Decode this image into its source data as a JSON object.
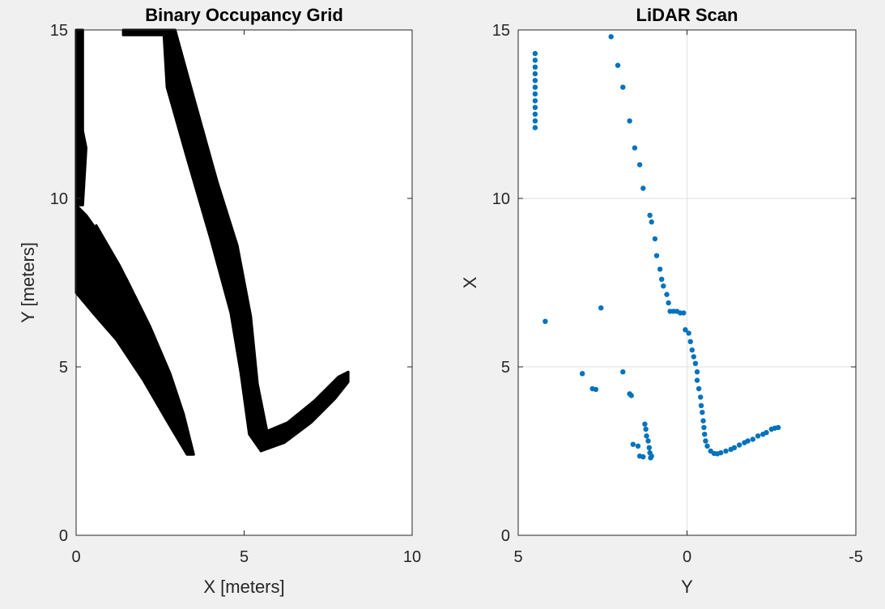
{
  "chart_data": [
    {
      "type": "heatmap",
      "title": "Binary Occupancy Grid",
      "xlabel": "X [meters]",
      "ylabel": "Y [meters]",
      "xlim": [
        0,
        10
      ],
      "ylim": [
        0,
        15
      ],
      "xticks": [
        "0",
        "5",
        "10"
      ],
      "yticks": [
        "0",
        "5",
        "10",
        "15"
      ],
      "grid": false,
      "colors": {
        "occupied": "#000000",
        "free": "#ffffff"
      },
      "occupied_regions": [
        {
          "name": "left-edge-wall",
          "polygon": [
            [
              0,
              15
            ],
            [
              0.2,
              15
            ],
            [
              0.2,
              12
            ],
            [
              0.3,
              11.5
            ],
            [
              0.2,
              9.8
            ],
            [
              0,
              9.8
            ]
          ]
        },
        {
          "name": "lower-left-wall-outer",
          "polygon": [
            [
              0,
              9.8
            ],
            [
              0.3,
              9.5
            ],
            [
              0.8,
              8.8
            ],
            [
              1.5,
              7.6
            ],
            [
              2.2,
              6.2
            ],
            [
              2.8,
              4.8
            ],
            [
              3.2,
              3.6
            ],
            [
              3.5,
              2.4
            ],
            [
              3.3,
              2.4
            ],
            [
              2.7,
              3.4
            ],
            [
              2.0,
              4.6
            ],
            [
              1.2,
              5.8
            ],
            [
              0.5,
              6.6
            ],
            [
              0,
              7.2
            ]
          ]
        },
        {
          "name": "lower-left-wall-inner",
          "polygon": [
            [
              0.6,
              9.2
            ],
            [
              1.3,
              8.0
            ],
            [
              2.0,
              6.6
            ],
            [
              2.6,
              5.2
            ],
            [
              2.3,
              5.0
            ],
            [
              1.6,
              6.3
            ],
            [
              0.9,
              7.6
            ],
            [
              0.3,
              8.6
            ]
          ]
        },
        {
          "name": "long-diagonal-wall",
          "polygon": [
            [
              2.6,
              15
            ],
            [
              2.95,
              15
            ],
            [
              3.5,
              13
            ],
            [
              4.2,
              10.5
            ],
            [
              4.8,
              8.6
            ],
            [
              5.2,
              6.5
            ],
            [
              5.4,
              4.5
            ],
            [
              5.7,
              3.0
            ],
            [
              5.5,
              2.5
            ],
            [
              5.15,
              3.0
            ],
            [
              4.9,
              4.8
            ],
            [
              4.6,
              6.6
            ],
            [
              4.0,
              8.8
            ],
            [
              3.3,
              11.2
            ],
            [
              2.7,
              13.3
            ]
          ]
        },
        {
          "name": "top-segment",
          "polygon": [
            [
              1.4,
              15
            ],
            [
              2.6,
              15
            ],
            [
              2.6,
              14.85
            ],
            [
              1.4,
              14.85
            ]
          ]
        },
        {
          "name": "lower-right-wall",
          "polygon": [
            [
              5.5,
              2.5
            ],
            [
              6.2,
              2.75
            ],
            [
              7.0,
              3.35
            ],
            [
              7.7,
              4.05
            ],
            [
              8.1,
              4.55
            ],
            [
              8.1,
              4.85
            ],
            [
              7.8,
              4.7
            ],
            [
              7.1,
              4.0
            ],
            [
              6.3,
              3.35
            ],
            [
              5.7,
              3.1
            ]
          ]
        }
      ]
    },
    {
      "type": "scatter",
      "title": "LiDAR Scan",
      "xlabel": "Y",
      "ylabel": "X",
      "xlim": [
        5,
        -5
      ],
      "ylim": [
        0,
        15
      ],
      "xticks": [
        "5",
        "0",
        "-5"
      ],
      "yticks": [
        "0",
        "5",
        "10",
        "15"
      ],
      "grid": true,
      "series": [
        {
          "color": "#0072bd",
          "points": [
            [
              4.5,
              14.3
            ],
            [
              4.5,
              14.1
            ],
            [
              4.5,
              13.9
            ],
            [
              4.5,
              13.7
            ],
            [
              4.5,
              13.5
            ],
            [
              4.5,
              13.3
            ],
            [
              4.5,
              13.1
            ],
            [
              4.5,
              12.9
            ],
            [
              4.5,
              12.7
            ],
            [
              4.5,
              12.5
            ],
            [
              4.5,
              12.3
            ],
            [
              4.5,
              12.1
            ],
            [
              4.2,
              6.35
            ],
            [
              3.1,
              4.8
            ],
            [
              2.8,
              4.35
            ],
            [
              2.7,
              4.33
            ],
            [
              2.55,
              6.75
            ],
            [
              2.25,
              14.8
            ],
            [
              2.05,
              13.95
            ],
            [
              1.9,
              13.3
            ],
            [
              1.7,
              12.3
            ],
            [
              1.55,
              11.5
            ],
            [
              1.4,
              11.0
            ],
            [
              1.3,
              10.3
            ],
            [
              1.1,
              9.5
            ],
            [
              1.05,
              9.3
            ],
            [
              0.95,
              8.8
            ],
            [
              0.9,
              8.3
            ],
            [
              0.8,
              7.9
            ],
            [
              0.75,
              7.6
            ],
            [
              0.7,
              7.4
            ],
            [
              0.6,
              7.15
            ],
            [
              0.55,
              6.9
            ],
            [
              0.5,
              6.65
            ],
            [
              0.4,
              6.65
            ],
            [
              0.3,
              6.65
            ],
            [
              0.2,
              6.6
            ],
            [
              0.1,
              6.6
            ],
            [
              0.05,
              6.1
            ],
            [
              -0.05,
              6.0
            ],
            [
              -0.1,
              5.75
            ],
            [
              -0.15,
              5.5
            ],
            [
              -0.2,
              5.3
            ],
            [
              -0.25,
              5.1
            ],
            [
              -0.3,
              4.85
            ],
            [
              -0.3,
              4.6
            ],
            [
              -0.35,
              4.35
            ],
            [
              -0.4,
              4.1
            ],
            [
              -0.42,
              3.85
            ],
            [
              -0.45,
              3.65
            ],
            [
              -0.48,
              3.4
            ],
            [
              -0.5,
              3.2
            ],
            [
              -0.52,
              3.0
            ],
            [
              -0.55,
              2.8
            ],
            [
              -0.6,
              2.65
            ],
            [
              -0.7,
              2.5
            ],
            [
              -0.8,
              2.43
            ],
            [
              -0.9,
              2.42
            ],
            [
              -1.0,
              2.45
            ],
            [
              -1.15,
              2.5
            ],
            [
              -1.3,
              2.55
            ],
            [
              -1.4,
              2.6
            ],
            [
              -1.55,
              2.68
            ],
            [
              -1.7,
              2.75
            ],
            [
              -1.8,
              2.8
            ],
            [
              -1.95,
              2.85
            ],
            [
              -2.1,
              2.95
            ],
            [
              -2.25,
              3.0
            ],
            [
              -2.35,
              3.05
            ],
            [
              -2.5,
              3.15
            ],
            [
              -2.6,
              3.18
            ],
            [
              -2.7,
              3.2
            ],
            [
              1.9,
              4.85
            ],
            [
              1.7,
              4.2
            ],
            [
              1.65,
              4.15
            ],
            [
              1.6,
              2.7
            ],
            [
              1.45,
              2.65
            ],
            [
              1.4,
              2.35
            ],
            [
              1.3,
              2.33
            ],
            [
              1.25,
              3.3
            ],
            [
              1.22,
              3.15
            ],
            [
              1.2,
              2.95
            ],
            [
              1.15,
              2.8
            ],
            [
              1.12,
              2.6
            ],
            [
              1.1,
              2.45
            ],
            [
              1.05,
              2.35
            ],
            [
              1.08,
              2.3
            ]
          ]
        }
      ]
    }
  ]
}
